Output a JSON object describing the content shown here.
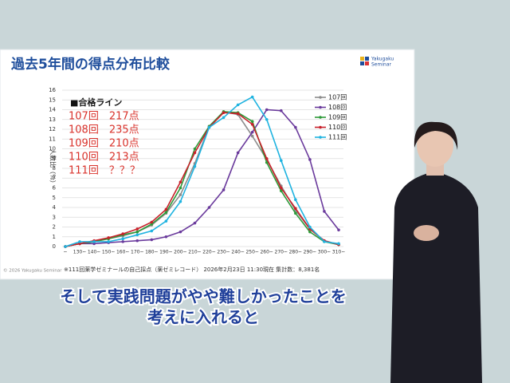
{
  "chart_data": {
    "type": "line",
    "title": "過去5年間の得点分布比較",
    "y_label": "人数比（%）",
    "categories": [
      "~",
      "130~",
      "140~",
      "150~",
      "160~",
      "170~",
      "180~",
      "190~",
      "200~",
      "210~",
      "220~",
      "230~",
      "240~",
      "250~",
      "260~",
      "270~",
      "280~",
      "290~",
      "300~",
      "310~"
    ],
    "series": [
      {
        "name": "107回",
        "color": "#8c8c8c",
        "values": [
          0,
          0.3,
          0.5,
          0.8,
          1.1,
          1.5,
          2.2,
          3.4,
          5.3,
          8.5,
          12.3,
          13.8,
          13.5,
          11.3,
          8.9,
          6.2,
          3.7,
          1.8,
          0.6,
          0.2
        ]
      },
      {
        "name": "108回",
        "color": "#6a3a9c",
        "values": [
          0,
          0.3,
          0.3,
          0.4,
          0.5,
          0.6,
          0.7,
          1.0,
          1.5,
          2.4,
          4.0,
          5.8,
          9.6,
          11.7,
          14.0,
          13.9,
          12.2,
          8.9,
          3.6,
          1.7
        ]
      },
      {
        "name": "109回",
        "color": "#2e9a3a",
        "values": [
          0,
          0.3,
          0.5,
          0.8,
          1.2,
          1.5,
          2.3,
          3.5,
          6.0,
          10.0,
          12.3,
          13.8,
          13.7,
          12.8,
          8.6,
          5.7,
          3.4,
          1.5,
          0.5,
          0.2
        ]
      },
      {
        "name": "110回",
        "color": "#c8202a",
        "values": [
          0,
          0.3,
          0.6,
          0.9,
          1.3,
          1.8,
          2.5,
          3.8,
          6.6,
          9.6,
          12.2,
          13.7,
          13.6,
          12.5,
          9.0,
          6.0,
          3.9,
          1.8,
          0.6,
          0.2
        ]
      },
      {
        "name": "111回",
        "color": "#1fb3e0",
        "values": [
          0,
          0.5,
          0.5,
          0.5,
          0.8,
          1.2,
          1.6,
          2.6,
          4.6,
          8.2,
          12.2,
          13.2,
          14.5,
          15.3,
          13.0,
          8.8,
          4.8,
          2.0,
          0.5,
          0.3
        ]
      }
    ],
    "ylim": [
      0,
      16
    ],
    "yticks": [
      0,
      1,
      2,
      3,
      4,
      5,
      6,
      7,
      8,
      9,
      10,
      11,
      12,
      13,
      14,
      15,
      16
    ],
    "grid": true,
    "legend": "upper right",
    "annotation_heading": "■合格ライン",
    "annotations": [
      "107回　217点",
      "108回　235点",
      "109回　210点",
      "110回　213点",
      "111回　？？？"
    ],
    "footnote": "※111回薬学ゼミナールの自己採点（薬ゼミレコード） 2026年2月23日 11:30現在 集計数：8,381名"
  },
  "logo": [
    "Yakugaku",
    "Seminar"
  ],
  "copyright": "© 2026 Yakugaku Seminar",
  "subtitles": [
    "そして実践問題がやや難しかったことを",
    "考えに入れると"
  ]
}
